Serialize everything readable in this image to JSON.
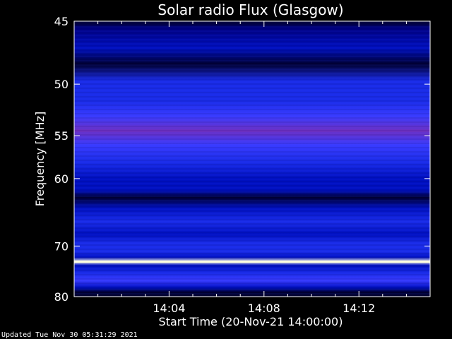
{
  "chart_data": {
    "type": "heatmap",
    "title": "Solar radio Flux (Glasgow)",
    "xlabel": "Start Time (20-Nov-21 14:00:00)",
    "ylabel": "Frequency [MHz]",
    "x_ticks": [
      "14:04",
      "14:08",
      "14:12"
    ],
    "x_tick_minutes": [
      4,
      8,
      12
    ],
    "x_range_minutes": [
      0,
      15
    ],
    "y_ticks": [
      45,
      50,
      55,
      60,
      70,
      80
    ],
    "y_range_mhz": [
      45,
      80
    ],
    "y_scale": "reciprocal",
    "bands": [
      {
        "mhz": 45.1,
        "intensity": 0.05
      },
      {
        "mhz": 45.5,
        "intensity": 0.22
      },
      {
        "mhz": 47.0,
        "intensity": 0.3
      },
      {
        "mhz": 48.3,
        "intensity": 0.12
      },
      {
        "mhz": 49.7,
        "intensity": 0.42
      },
      {
        "mhz": 51.5,
        "intensity": 0.4
      },
      {
        "mhz": 53.0,
        "intensity": 0.5
      },
      {
        "mhz": 54.5,
        "intensity": 0.55
      },
      {
        "mhz": 56.0,
        "intensity": 0.45
      },
      {
        "mhz": 58.0,
        "intensity": 0.38
      },
      {
        "mhz": 60.0,
        "intensity": 0.32
      },
      {
        "mhz": 61.5,
        "intensity": 0.3
      },
      {
        "mhz": 62.5,
        "intensity": 0.12
      },
      {
        "mhz": 64.0,
        "intensity": 0.34
      },
      {
        "mhz": 66.0,
        "intensity": 0.38
      },
      {
        "mhz": 68.0,
        "intensity": 0.3
      },
      {
        "mhz": 69.5,
        "intensity": 0.4
      },
      {
        "mhz": 71.0,
        "intensity": 0.36
      },
      {
        "mhz": 72.0,
        "intensity": 0.3
      },
      {
        "mhz": 72.8,
        "intensity": 1.0
      },
      {
        "mhz": 73.5,
        "intensity": 0.34
      },
      {
        "mhz": 75.0,
        "intensity": 0.36
      },
      {
        "mhz": 76.5,
        "intensity": 0.46
      },
      {
        "mhz": 78.0,
        "intensity": 0.3
      },
      {
        "mhz": 79.0,
        "intensity": 0.12
      },
      {
        "mhz": 80.0,
        "intensity": 0.05
      }
    ],
    "colormap": [
      "#000000",
      "#000030",
      "#000080",
      "#0010c0",
      "#1a2ce8",
      "#3a3cff",
      "#7030c0",
      "#c02040",
      "#ff6000",
      "#ffd000",
      "#ffffe0"
    ]
  },
  "footer": {
    "updated": "Updated Tue Nov 30 05:31:29 2021"
  }
}
